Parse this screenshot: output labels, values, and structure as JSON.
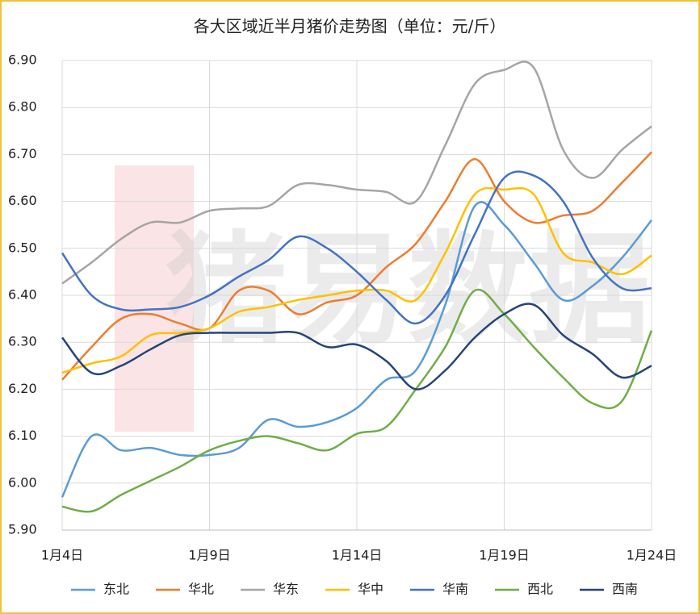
{
  "chart_data": {
    "type": "line",
    "title": "各大区域近半月猪价走势图（单位：元/斤）",
    "watermark": "猪易数据",
    "categories": [
      "1月4日",
      null,
      null,
      null,
      null,
      "1月9日",
      null,
      null,
      null,
      null,
      "1月14日",
      null,
      null,
      null,
      null,
      "1月19日",
      null,
      null,
      null,
      null,
      "1月24日"
    ],
    "ylim": [
      5.9,
      6.9
    ],
    "yticks": [
      {
        "value": 5.9,
        "label": "5.90"
      },
      {
        "value": 6.0,
        "label": "6.00"
      },
      {
        "value": 6.1,
        "label": "6.10"
      },
      {
        "value": 6.2,
        "label": "6.20"
      },
      {
        "value": 6.3,
        "label": "6.30"
      },
      {
        "value": 6.4,
        "label": "6.40"
      },
      {
        "value": 6.5,
        "label": "6.50"
      },
      {
        "value": 6.6,
        "label": "6.60"
      },
      {
        "value": 6.7,
        "label": "6.70"
      },
      {
        "value": 6.8,
        "label": "6.80"
      },
      {
        "value": 6.9,
        "label": "6.90"
      }
    ],
    "grid": true,
    "legend": "bottom",
    "series": [
      {
        "name": "东北",
        "color": "#5b9bd5",
        "values": [
          5.97,
          6.1,
          6.07,
          6.075,
          6.06,
          6.06,
          6.075,
          6.135,
          6.12,
          6.13,
          6.16,
          6.22,
          6.24,
          6.38,
          6.59,
          6.55,
          6.47,
          6.39,
          6.42,
          6.48,
          6.56
        ]
      },
      {
        "name": "华北",
        "color": "#ed7d31",
        "values": [
          6.22,
          6.29,
          6.35,
          6.36,
          6.34,
          6.33,
          6.41,
          6.41,
          6.36,
          6.385,
          6.4,
          6.46,
          6.51,
          6.6,
          6.69,
          6.6,
          6.555,
          6.57,
          6.58,
          6.64,
          6.705
        ]
      },
      {
        "name": "华东",
        "color": "#a5a5a5",
        "values": [
          6.425,
          6.47,
          6.52,
          6.555,
          6.555,
          6.58,
          6.585,
          6.59,
          6.635,
          6.635,
          6.625,
          6.62,
          6.6,
          6.72,
          6.85,
          6.88,
          6.885,
          6.71,
          6.65,
          6.71,
          6.76
        ]
      },
      {
        "name": "华中",
        "color": "#ffc000",
        "values": [
          6.235,
          6.255,
          6.27,
          6.315,
          6.32,
          6.33,
          6.365,
          6.375,
          6.39,
          6.4,
          6.41,
          6.41,
          6.39,
          6.49,
          6.615,
          6.625,
          6.615,
          6.49,
          6.47,
          6.445,
          6.485
        ]
      },
      {
        "name": "华南",
        "color": "#4472c4",
        "values": [
          6.49,
          6.4,
          6.37,
          6.37,
          6.375,
          6.4,
          6.44,
          6.475,
          6.525,
          6.5,
          6.45,
          6.39,
          6.34,
          6.4,
          6.53,
          6.65,
          6.655,
          6.6,
          6.48,
          6.415,
          6.415
        ]
      },
      {
        "name": "西北",
        "color": "#70ad47",
        "values": [
          5.95,
          5.94,
          5.975,
          6.005,
          6.035,
          6.07,
          6.09,
          6.1,
          6.085,
          6.07,
          6.105,
          6.12,
          6.2,
          6.29,
          6.41,
          6.36,
          6.29,
          6.225,
          6.17,
          6.175,
          6.325
        ]
      },
      {
        "name": "西南",
        "color": "#264478",
        "values": [
          6.31,
          6.235,
          6.25,
          6.285,
          6.315,
          6.32,
          6.32,
          6.32,
          6.32,
          6.29,
          6.295,
          6.26,
          6.2,
          6.24,
          6.31,
          6.36,
          6.38,
          6.315,
          6.275,
          6.225,
          6.25
        ]
      }
    ]
  }
}
